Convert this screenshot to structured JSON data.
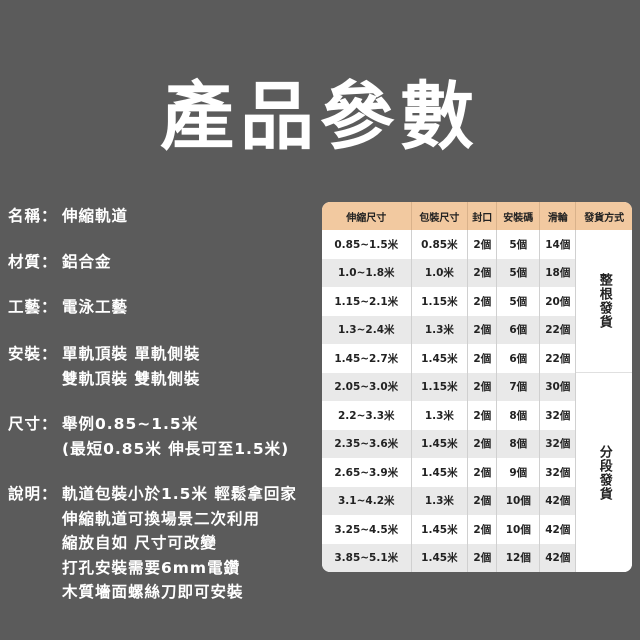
{
  "title": "產品參數",
  "specs": [
    {
      "label": "名稱：",
      "lines": [
        "伸縮軌道"
      ]
    },
    {
      "label": "材質：",
      "lines": [
        "鋁合金"
      ]
    },
    {
      "label": "工藝：",
      "lines": [
        "電泳工藝"
      ]
    },
    {
      "label": "安裝：",
      "lines": [
        "單軌頂裝 單軌側裝",
        "雙軌頂裝 雙軌側裝"
      ]
    },
    {
      "label": "尺寸：",
      "lines": [
        "舉例0.85~1.5米",
        "(最短0.85米 伸長可至1.5米)"
      ]
    },
    {
      "label": "說明：",
      "lines": [
        "軌道包裝小於1.5米 輕鬆拿回家",
        "伸縮軌道可換場景二次利用",
        "縮放自如 尺寸可改變",
        "打孔安裝需要6mm電鑽",
        "木質墻面螺絲刀即可安裝"
      ]
    }
  ],
  "table": {
    "headers": [
      "伸縮尺寸",
      "包裝尺寸",
      "封口",
      "安裝碼",
      "滑輪",
      "發貨方式"
    ],
    "rows": [
      [
        "0.85~1.5米",
        "0.85米",
        "2個",
        "5個",
        "14個"
      ],
      [
        "1.0~1.8米",
        "1.0米",
        "2個",
        "5個",
        "18個"
      ],
      [
        "1.15~2.1米",
        "1.15米",
        "2個",
        "5個",
        "20個"
      ],
      [
        "1.3~2.4米",
        "1.3米",
        "2個",
        "6個",
        "22個"
      ],
      [
        "1.45~2.7米",
        "1.45米",
        "2個",
        "6個",
        "22個"
      ],
      [
        "2.05~3.0米",
        "1.15米",
        "2個",
        "7個",
        "30個"
      ],
      [
        "2.2~3.3米",
        "1.3米",
        "2個",
        "8個",
        "32個"
      ],
      [
        "2.35~3.6米",
        "1.45米",
        "2個",
        "8個",
        "32個"
      ],
      [
        "2.65~3.9米",
        "1.45米",
        "2個",
        "9個",
        "32個"
      ],
      [
        "3.1~4.2米",
        "1.3米",
        "2個",
        "10個",
        "42個"
      ],
      [
        "3.25~4.5米",
        "1.45米",
        "2個",
        "10個",
        "42個"
      ],
      [
        "3.85~5.1米",
        "1.45米",
        "2個",
        "12個",
        "42個"
      ]
    ],
    "shipping": [
      {
        "label": "整根發貨",
        "rows": 5
      },
      {
        "label": "分段發貨",
        "rows": 7
      }
    ]
  }
}
